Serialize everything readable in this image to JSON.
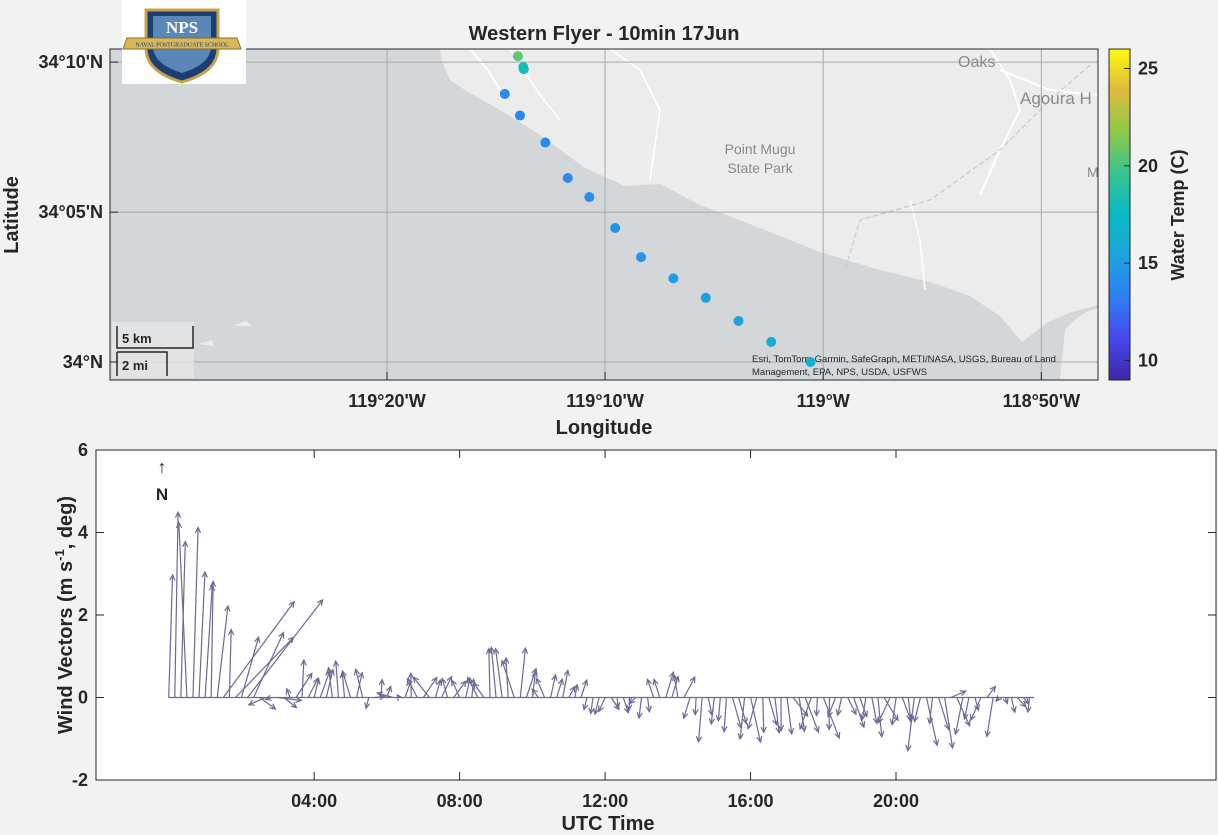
{
  "logo": {
    "text": "NPS",
    "banner": "NAVAL POSTGRADUATE SCHOOL"
  },
  "chart_data": [
    {
      "type": "scatter",
      "title": "Western Flyer - 10min 17Jun",
      "xlabel": "Longitude",
      "ylabel": "Latitude",
      "xlim": [
        -119.545,
        -118.79
      ],
      "ylim": [
        33.99,
        34.174
      ],
      "xtick_values": [
        -119.3333,
        -119.1667,
        -119.0,
        -118.8333
      ],
      "xtick_labels": [
        "119°20'W",
        "119°10'W",
        "119°W",
        "118°50'W"
      ],
      "ytick_values": [
        34.0,
        34.0833,
        34.1667
      ],
      "ytick_labels": [
        "34°N",
        "34°05'N",
        "34°10'N"
      ],
      "grid": true,
      "colorbar": {
        "label": "Water Temp (C)",
        "range": [
          9,
          26
        ],
        "tick_values": [
          10,
          15,
          20,
          25
        ],
        "tick_labels": [
          "10",
          "15",
          "20",
          "25"
        ]
      },
      "points": [
        {
          "lon": -119.2333,
          "lat": 34.17,
          "temp": 20.5
        },
        {
          "lon": -119.2292,
          "lat": 34.164,
          "temp": 18.5
        },
        {
          "lon": -119.2288,
          "lat": 34.1628,
          "temp": 18.0
        },
        {
          "lon": -119.2433,
          "lat": 34.149,
          "temp": 14.0
        },
        {
          "lon": -119.2317,
          "lat": 34.137,
          "temp": 13.8
        },
        {
          "lon": -119.2123,
          "lat": 34.122,
          "temp": 13.9
        },
        {
          "lon": -119.1952,
          "lat": 34.1023,
          "temp": 14.0
        },
        {
          "lon": -119.1787,
          "lat": 34.0917,
          "temp": 14.1
        },
        {
          "lon": -119.159,
          "lat": 34.0745,
          "temp": 14.5
        },
        {
          "lon": -119.1392,
          "lat": 34.0583,
          "temp": 14.6
        },
        {
          "lon": -119.1145,
          "lat": 34.0465,
          "temp": 15.0
        },
        {
          "lon": -119.0897,
          "lat": 34.0357,
          "temp": 15.0
        },
        {
          "lon": -119.0647,
          "lat": 34.0228,
          "temp": 15.3
        },
        {
          "lon": -119.0397,
          "lat": 34.0112,
          "temp": 16.0
        },
        {
          "lon": -119.0097,
          "lat": 34.0,
          "temp": 16.5
        }
      ],
      "map_labels": [
        "Oaks",
        "Agoura H",
        "Point Mugu",
        "State Park",
        "M"
      ],
      "scale_bar": {
        "km": "5 km",
        "mi": "2 mi"
      },
      "attribution_line1": "Esri, TomTom, Garmin, SafeGraph, METI/NASA, USGS, Bureau of Land",
      "attribution_line2": "Management, EPA, NPS, USDA, USFWS"
    },
    {
      "type": "quiver",
      "xlabel": "UTC Time",
      "ylabel": "Wind  Vectors  (m  s",
      "ylabel_sup": "-1",
      "ylabel_end": ",  deg)",
      "north_arrow": "↑",
      "north_label": "N",
      "xlim": [
        -2.0,
        28.8
      ],
      "ylim": [
        -2,
        6
      ],
      "ytick_values": [
        -2,
        0,
        2,
        4,
        6
      ],
      "ytick_labels": [
        "-2",
        "0",
        "2",
        "4",
        "6"
      ],
      "xtick_values": [
        4,
        8,
        12,
        16,
        20
      ],
      "xtick_labels": [
        "04:00",
        "08:00",
        "12:00",
        "16:00",
        "20:00"
      ],
      "step_hours": 0.1667,
      "start_hour": 0.0,
      "end_hour": 23.8,
      "segments": [
        {
          "t0": 0.0,
          "t1": 1.2,
          "u": [
            -0.3,
            0.3
          ],
          "v": [
            2.3,
            4.5
          ]
        },
        {
          "t0": 1.2,
          "t1": 2.4,
          "u": [
            -0.2,
            2.0
          ],
          "v": [
            0.8,
            2.6
          ]
        },
        {
          "t0": 2.4,
          "t1": 3.4,
          "u": [
            -0.6,
            0.6
          ],
          "v": [
            -0.4,
            0.3
          ]
        },
        {
          "t0": 3.4,
          "t1": 4.3,
          "u": [
            -0.6,
            0.6
          ],
          "v": [
            0.4,
            1.0
          ]
        },
        {
          "t0": 4.3,
          "t1": 5.5,
          "u": [
            -0.4,
            0.4
          ],
          "v": [
            0.6,
            0.9
          ]
        },
        {
          "t0": 5.5,
          "t1": 6.4,
          "u": [
            -0.4,
            0.4
          ],
          "v": [
            -0.5,
            0.6
          ]
        },
        {
          "t0": 6.4,
          "t1": 7.6,
          "u": [
            -0.4,
            0.4
          ],
          "v": [
            0.3,
            0.6
          ]
        },
        {
          "t0": 7.6,
          "t1": 8.8,
          "u": [
            -0.3,
            0.3
          ],
          "v": [
            0.3,
            0.5
          ]
        },
        {
          "t0": 8.8,
          "t1": 9.8,
          "u": [
            -0.3,
            0.3
          ],
          "v": [
            0.7,
            1.3
          ]
        },
        {
          "t0": 9.8,
          "t1": 11.5,
          "u": [
            -0.4,
            0.4
          ],
          "v": [
            0.2,
            0.7
          ]
        },
        {
          "t0": 11.5,
          "t1": 12.5,
          "u": [
            -0.2,
            0.2
          ],
          "v": [
            -0.5,
            -0.2
          ]
        },
        {
          "t0": 12.5,
          "t1": 13.3,
          "u": [
            -0.2,
            0.2
          ],
          "v": [
            -0.5,
            -0.1
          ]
        },
        {
          "t0": 13.3,
          "t1": 14.3,
          "u": [
            -0.2,
            0.3
          ],
          "v": [
            0.4,
            0.7
          ]
        },
        {
          "t0": 14.3,
          "t1": 15.5,
          "u": [
            -0.2,
            0.3
          ],
          "v": [
            -1.3,
            -0.4
          ]
        },
        {
          "t0": 15.5,
          "t1": 17.5,
          "u": [
            -0.3,
            0.4
          ],
          "v": [
            -1.1,
            -0.4
          ]
        },
        {
          "t0": 17.5,
          "t1": 20.0,
          "u": [
            -0.3,
            0.4
          ],
          "v": [
            -1.0,
            -0.4
          ]
        },
        {
          "t0": 20.0,
          "t1": 21.4,
          "u": [
            -0.3,
            0.4
          ],
          "v": [
            -1.4,
            -0.5
          ]
        },
        {
          "t0": 21.4,
          "t1": 22.8,
          "u": [
            -0.3,
            0.5
          ],
          "v": [
            -1.0,
            0.4
          ]
        },
        {
          "t0": 22.8,
          "t1": 23.8,
          "u": [
            -0.2,
            0.3
          ],
          "v": [
            -0.4,
            0.0
          ]
        }
      ]
    }
  ],
  "colors": {
    "line": "#262626",
    "vector": "#6a6a94",
    "water": "#d4d7d9",
    "land": "#ececec",
    "road": "#ffffff"
  }
}
